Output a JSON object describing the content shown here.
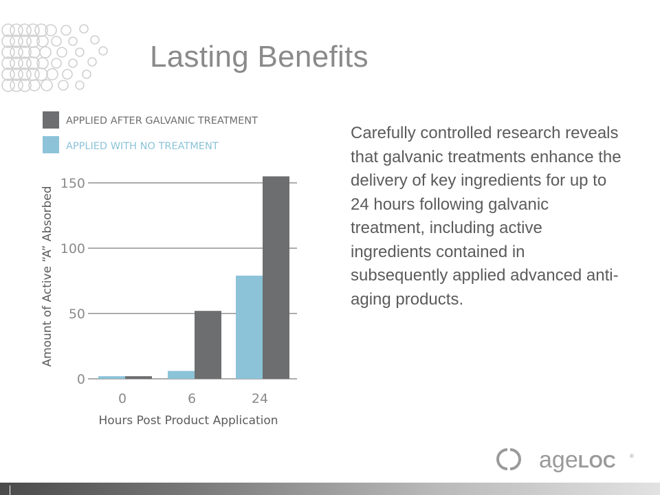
{
  "slide": {
    "title": "Lasting Benefits",
    "body": "Carefully controlled research reveals that galvanic treatments enhance the delivery of key ingredients for up to 24 hours following galvanic treatment, including active ingredients contained in subsequently applied advanced anti-aging products."
  },
  "logo": {
    "text_main": "age",
    "text_bold": "LOC",
    "mark": "®"
  },
  "colors": {
    "title": "#8a8a8a",
    "text": "#5b5b5b",
    "series_dark": "#6d6e70",
    "series_light": "#8cc3d9",
    "grid": "#7a7a7a"
  },
  "chart_data": {
    "type": "bar",
    "title": "",
    "xlabel": "Hours Post Product Application",
    "ylabel": "Amount of Active “A” Absorbed",
    "categories": [
      "0",
      "6",
      "24"
    ],
    "series": [
      {
        "name": "APPLIED AFTER GALVANIC TREATMENT",
        "color": "#6d6e70",
        "values": [
          2,
          52,
          155
        ]
      },
      {
        "name": "APPLIED WITH NO TREATMENT",
        "color": "#8cc3d9",
        "values": [
          2,
          6,
          79
        ]
      }
    ],
    "yticks": [
      "0",
      "50",
      "100",
      "150"
    ],
    "ylim": [
      0,
      150
    ],
    "grid": true,
    "legend_position": "top-left"
  }
}
